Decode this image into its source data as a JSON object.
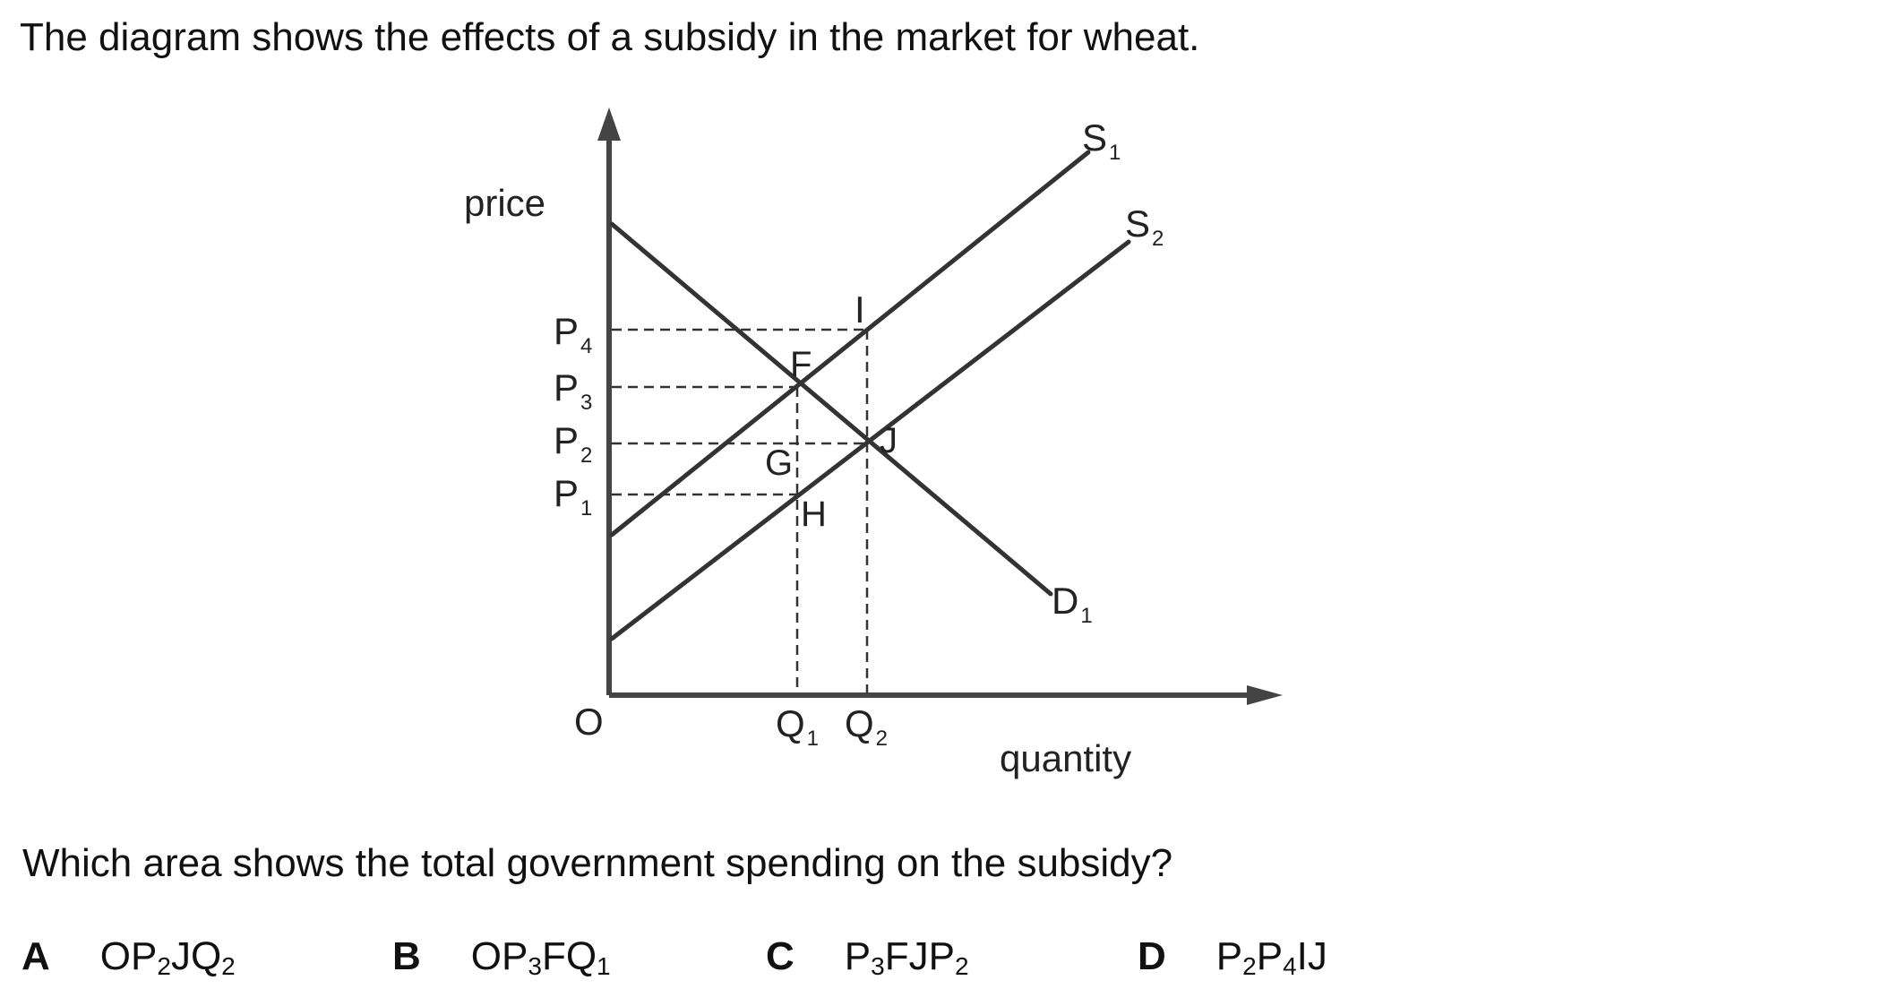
{
  "question": {
    "stem": "The diagram shows the effects of a subsidy in the market for wheat.",
    "prompt": "Which area shows the total government spending on the subsidy?"
  },
  "diagram": {
    "y_axis_label": "price",
    "x_axis_label": "quantity",
    "origin_label": "O",
    "price_levels": [
      {
        "base": "P",
        "sub": "4"
      },
      {
        "base": "P",
        "sub": "3"
      },
      {
        "base": "P",
        "sub": "2"
      },
      {
        "base": "P",
        "sub": "1"
      }
    ],
    "quantity_levels": [
      {
        "base": "Q",
        "sub": "1"
      },
      {
        "base": "Q",
        "sub": "2"
      }
    ],
    "curves": {
      "s1": {
        "base": "S",
        "sub": "1"
      },
      "s2": {
        "base": "S",
        "sub": "2"
      },
      "d1": {
        "base": "D",
        "sub": "1"
      }
    },
    "points": {
      "i": "I",
      "f": "F",
      "g": "G",
      "j": "J",
      "h": "H"
    }
  },
  "options": [
    {
      "letter": "A",
      "parts": [
        {
          "t": "OP"
        },
        {
          "s": "2"
        },
        {
          "t": "JQ"
        },
        {
          "s": "2"
        }
      ]
    },
    {
      "letter": "B",
      "parts": [
        {
          "t": "OP"
        },
        {
          "s": "3"
        },
        {
          "t": "FQ"
        },
        {
          "s": "1"
        }
      ]
    },
    {
      "letter": "C",
      "parts": [
        {
          "t": "P"
        },
        {
          "s": "3"
        },
        {
          "t": "FJP"
        },
        {
          "s": "2"
        }
      ]
    },
    {
      "letter": "D",
      "parts": [
        {
          "t": "P"
        },
        {
          "s": "2"
        },
        {
          "t": "P"
        },
        {
          "s": "4"
        },
        {
          "t": "IJ"
        }
      ]
    }
  ]
}
